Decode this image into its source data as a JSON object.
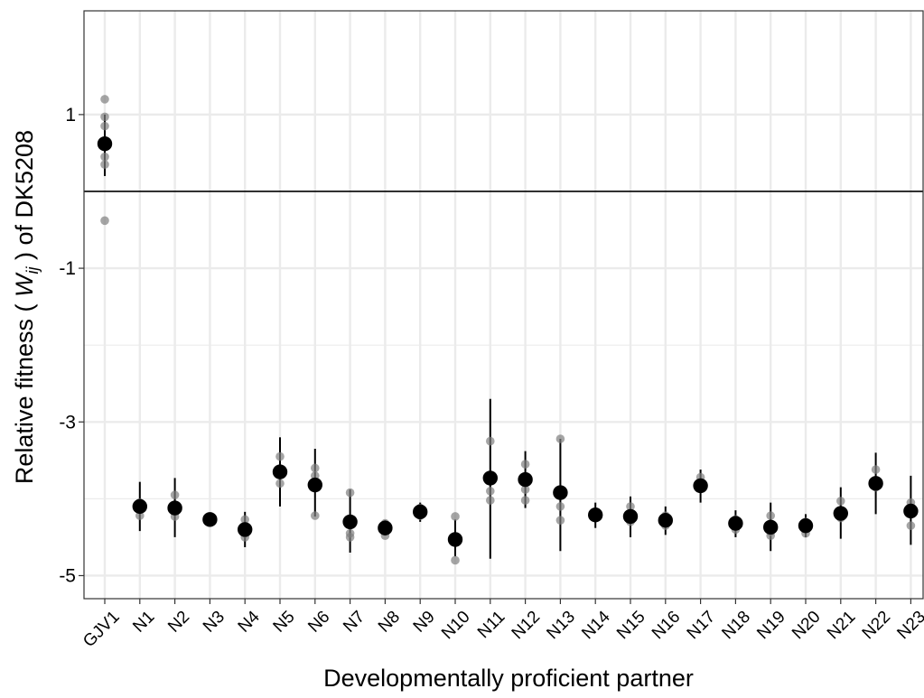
{
  "chart_data": {
    "type": "scatter",
    "title": "",
    "xlabel": "Developmentally proficient partner",
    "ylabel": {
      "prefix": "Relative fitness ( ",
      "symbol": "W",
      "subscript": "ij",
      "suffix": " ) of DK5208"
    },
    "ylim": [
      -5.3,
      2.35
    ],
    "yticks": [
      1,
      -1,
      -3,
      -5
    ],
    "ytick_labels": [
      "1",
      "-1",
      "-3",
      "-5"
    ],
    "reference_line": 0,
    "grid": true,
    "legend": "none",
    "colors": {
      "mean": "#000000",
      "replicate": "#7f7f7f",
      "grid": "#ebebeb",
      "panel_border": "#333333"
    },
    "categories": [
      "GJV1",
      "N1",
      "N2",
      "N3",
      "N4",
      "N5",
      "N6",
      "N7",
      "N8",
      "N9",
      "N10",
      "N11",
      "N12",
      "N13",
      "N14",
      "N15",
      "N16",
      "N17",
      "N18",
      "N19",
      "N20",
      "N21",
      "N22",
      "N23"
    ],
    "mean": [
      0.62,
      -4.1,
      -4.12,
      -4.27,
      -4.4,
      -3.65,
      -3.82,
      -4.3,
      -4.38,
      -4.17,
      -4.53,
      -3.73,
      -3.75,
      -3.92,
      -4.21,
      -4.23,
      -4.28,
      -3.83,
      -4.32,
      -4.37,
      -4.35,
      -4.19,
      -3.8,
      -4.16
    ],
    "interval_low": [
      0.2,
      -4.42,
      -4.5,
      -4.33,
      -4.63,
      -4.1,
      -4.23,
      -4.7,
      -4.48,
      -4.3,
      -4.75,
      -4.78,
      -4.12,
      -4.68,
      -4.38,
      -4.5,
      -4.47,
      -4.05,
      -4.5,
      -4.68,
      -4.5,
      -4.52,
      -4.2,
      -4.6
    ],
    "interval_high": [
      1.0,
      -3.78,
      -3.73,
      -4.22,
      -4.17,
      -3.2,
      -3.35,
      -3.88,
      -4.28,
      -4.05,
      -4.27,
      -2.7,
      -3.38,
      -3.22,
      -4.05,
      -3.97,
      -4.1,
      -3.62,
      -4.15,
      -4.05,
      -4.2,
      -3.85,
      -3.4,
      -3.7
    ],
    "replicates": [
      [
        1.2,
        0.97,
        0.85,
        0.45,
        0.35,
        -0.38
      ],
      [
        -4.05,
        -4.22
      ],
      [
        -3.95,
        -4.23
      ],
      [
        -4.25,
        -4.3
      ],
      [
        -4.27,
        -4.5,
        -4.45
      ],
      [
        -3.45,
        -3.8
      ],
      [
        -3.6,
        -3.7,
        -4.22
      ],
      [
        -3.92,
        -4.45,
        -4.5
      ],
      [
        -4.32,
        -4.48
      ],
      [
        -4.12,
        -4.22
      ],
      [
        -4.23,
        -4.8
      ],
      [
        -3.25,
        -3.9,
        -4.02
      ],
      [
        -3.55,
        -3.88,
        -4.02
      ],
      [
        -3.22,
        -4.1,
        -4.28
      ],
      [
        -4.18
      ],
      [
        -4.1,
        -4.3
      ],
      [
        -4.22,
        -4.35
      ],
      [
        -3.72
      ],
      [
        -4.27,
        -4.4
      ],
      [
        -4.22,
        -4.43,
        -4.48
      ],
      [
        -4.3,
        -4.45
      ],
      [
        -4.03,
        -4.25
      ],
      [
        -3.62,
        -3.85
      ],
      [
        -4.05,
        -4.35
      ]
    ]
  }
}
